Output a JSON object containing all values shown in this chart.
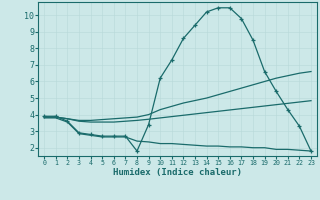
{
  "xlabel": "Humidex (Indice chaleur)",
  "bg_color": "#cce8e8",
  "line_color": "#1a6b6b",
  "grid_color": "#b8d8d8",
  "xlim": [
    -0.5,
    23.5
  ],
  "ylim": [
    1.5,
    10.8
  ],
  "xticks": [
    0,
    1,
    2,
    3,
    4,
    5,
    6,
    7,
    8,
    9,
    10,
    11,
    12,
    13,
    14,
    15,
    16,
    17,
    18,
    19,
    20,
    21,
    22,
    23
  ],
  "yticks": [
    2,
    3,
    4,
    5,
    6,
    7,
    8,
    9,
    10
  ],
  "line1_x": [
    0,
    1,
    2,
    3,
    4,
    5,
    6,
    7,
    8,
    9,
    10,
    11,
    12,
    13,
    14,
    15,
    16,
    17,
    18,
    19,
    20,
    21,
    22,
    23
  ],
  "line1_y": [
    3.9,
    3.9,
    3.6,
    2.9,
    2.8,
    2.7,
    2.7,
    2.7,
    1.8,
    3.4,
    6.2,
    7.3,
    8.6,
    9.4,
    10.2,
    10.45,
    10.45,
    9.8,
    8.5,
    6.6,
    5.4,
    4.3,
    3.3,
    1.8
  ],
  "line2_x": [
    0,
    1,
    2,
    3,
    4,
    5,
    6,
    7,
    8,
    9,
    10,
    11,
    12,
    13,
    14,
    15,
    16,
    17,
    18,
    19,
    20,
    21,
    22,
    23
  ],
  "line2_y": [
    3.85,
    3.85,
    3.75,
    3.65,
    3.65,
    3.7,
    3.75,
    3.8,
    3.85,
    4.0,
    4.3,
    4.5,
    4.7,
    4.85,
    5.0,
    5.2,
    5.4,
    5.6,
    5.8,
    6.0,
    6.2,
    6.35,
    6.5,
    6.6
  ],
  "line3_x": [
    0,
    1,
    2,
    3,
    4,
    5,
    6,
    7,
    8,
    9,
    10,
    11,
    12,
    13,
    14,
    15,
    16,
    17,
    18,
    19,
    20,
    21,
    22,
    23
  ],
  "line3_y": [
    3.85,
    3.85,
    3.75,
    3.6,
    3.55,
    3.55,
    3.55,
    3.6,
    3.65,
    3.72,
    3.8,
    3.88,
    3.96,
    4.04,
    4.12,
    4.2,
    4.28,
    4.36,
    4.44,
    4.52,
    4.6,
    4.68,
    4.76,
    4.84
  ],
  "line4_x": [
    0,
    1,
    2,
    3,
    4,
    5,
    6,
    7,
    8,
    9,
    10,
    11,
    12,
    13,
    14,
    15,
    16,
    17,
    18,
    19,
    20,
    21,
    22,
    23
  ],
  "line4_y": [
    3.8,
    3.8,
    3.55,
    2.85,
    2.75,
    2.65,
    2.65,
    2.65,
    2.4,
    2.35,
    2.25,
    2.25,
    2.2,
    2.15,
    2.1,
    2.1,
    2.05,
    2.05,
    2.0,
    2.0,
    1.9,
    1.9,
    1.85,
    1.8
  ]
}
